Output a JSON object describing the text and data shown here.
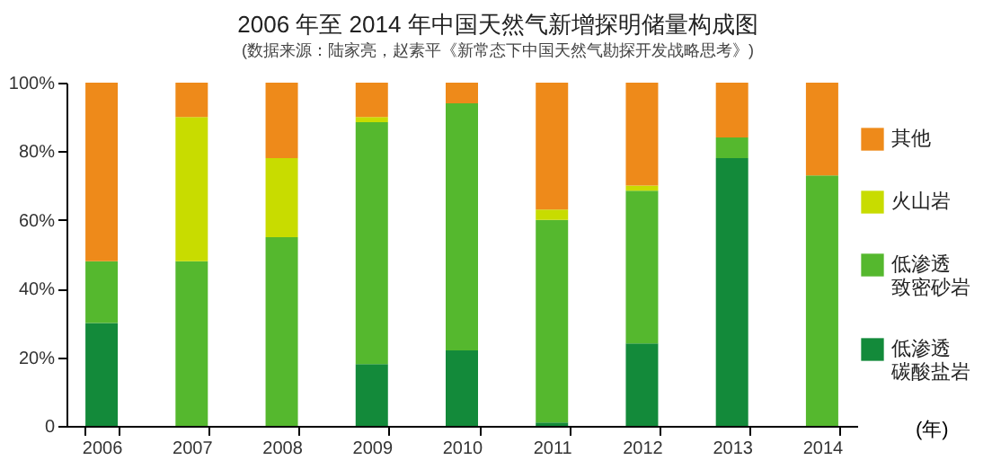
{
  "chart_data": {
    "type": "bar",
    "stacked": true,
    "title": "2006 年至 2014 年中国天然气新增探明储量构成图",
    "subtitle": "(数据来源：陆家亮，赵素平《新常态下中国天然气勘探开发战略思考》)",
    "xlabel": "(年)",
    "categories": [
      "2006",
      "2007",
      "2008",
      "2009",
      "2010",
      "2011",
      "2012",
      "2013",
      "2014"
    ],
    "series": [
      {
        "name": "低渗透碳酸盐岩",
        "color": "#138a3a",
        "values": [
          30,
          0,
          0,
          18,
          22,
          1,
          24,
          78,
          0
        ]
      },
      {
        "name": "低渗透致密砂岩",
        "color": "#55b82e",
        "values": [
          18,
          48,
          55,
          70.5,
          72,
          59,
          44.5,
          6,
          73
        ]
      },
      {
        "name": "火山岩",
        "color": "#c8dc00",
        "values": [
          0,
          42,
          23,
          1.5,
          0,
          3,
          1.5,
          0,
          0
        ]
      },
      {
        "name": "其他",
        "color": "#ee8a1a",
        "values": [
          52,
          10,
          22,
          10,
          6,
          37,
          30,
          16,
          27
        ]
      }
    ],
    "ylim": [
      0,
      100
    ],
    "yticks": [
      0,
      {
        "value": 20,
        "label": "20%"
      },
      {
        "value": 40,
        "label": "40%"
      },
      {
        "value": 60,
        "label": "60%"
      },
      {
        "value": 80,
        "label": "80%"
      },
      {
        "value": 100,
        "label": "100%"
      }
    ],
    "legend": "right"
  }
}
